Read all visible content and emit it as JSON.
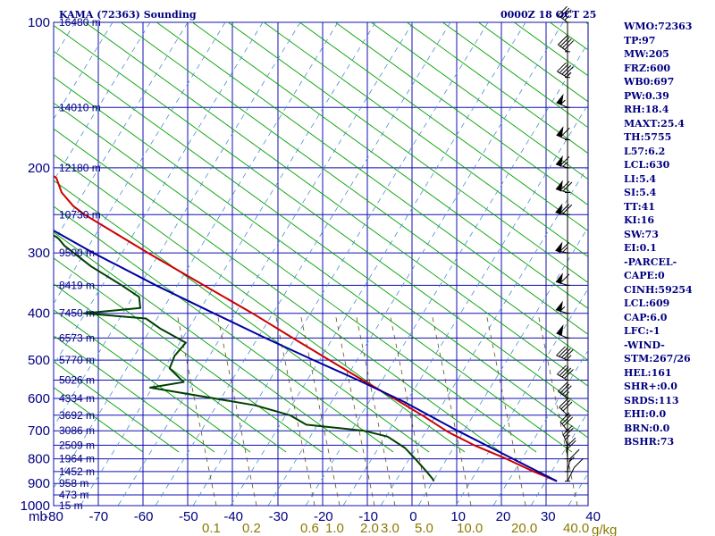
{
  "title_left": "KAMA (72363) Sounding",
  "title_right": "0000Z 18 OCT 25",
  "pressure_unit": "mb",
  "mixing_unit": "g/kg",
  "chart_data": {
    "type": "line",
    "title": "KAMA (72363) Sounding",
    "timestamp": "0000Z 18 OCT 25",
    "y_axis": "pressure (mb), logarithmic, top 100 to bottom 1000",
    "x_axis": "temperature (C), skewed isotherms",
    "pressure_ticks": [
      100,
      200,
      300,
      400,
      500,
      600,
      700,
      800,
      900,
      1000
    ],
    "temperature_ticks": [
      -80,
      -70,
      -60,
      -50,
      -40,
      -30,
      -20,
      -10,
      0,
      10,
      20,
      30,
      40
    ],
    "temperature_tick_labels": [
      "-80",
      "-70",
      "-60",
      "-50",
      "-40",
      "-30",
      "-20",
      "-10",
      "0",
      "10",
      "20",
      "30",
      "40"
    ],
    "height_labels": [
      {
        "p": 100,
        "text": "16480 m"
      },
      {
        "p": 150,
        "text": "14010 m"
      },
      {
        "p": 200,
        "text": "12180 m"
      },
      {
        "p": 250,
        "text": "10730 m"
      },
      {
        "p": 300,
        "text": "9500 m"
      },
      {
        "p": 350,
        "text": "8419 m"
      },
      {
        "p": 400,
        "text": "7450 m"
      },
      {
        "p": 450,
        "text": "6573 m"
      },
      {
        "p": 500,
        "text": "5770 m"
      },
      {
        "p": 550,
        "text": "5026 m"
      },
      {
        "p": 600,
        "text": "4334 m"
      },
      {
        "p": 650,
        "text": "3692 m"
      },
      {
        "p": 700,
        "text": "3086 m"
      },
      {
        "p": 750,
        "text": "2509 m"
      },
      {
        "p": 800,
        "text": "1964 m"
      },
      {
        "p": 850,
        "text": "1452 m"
      },
      {
        "p": 900,
        "text": "958 m"
      },
      {
        "p": 950,
        "text": "473 m"
      },
      {
        "p": 1000,
        "text": "15 m"
      }
    ],
    "mixing_ratio_labels": [
      "0.1",
      "0.2",
      "0.6",
      "1.0",
      "2.0",
      "3.0",
      "5.0",
      "10.0",
      "20.0",
      "40.0"
    ],
    "mixing_ratio_values": [
      0.1,
      0.2,
      0.6,
      1.0,
      2.0,
      3.0,
      5.0,
      10.0,
      20.0,
      40.0
    ],
    "series": [
      {
        "name": "Temperature",
        "color": "#cc0000",
        "points": [
          [
            890,
            24.5
          ],
          [
            850,
            20.5
          ],
          [
            800,
            16.0
          ],
          [
            750,
            10.5
          ],
          [
            712,
            7.0
          ],
          [
            700,
            6.0
          ],
          [
            650,
            2.5
          ],
          [
            600,
            -1.7
          ],
          [
            550,
            -6.5
          ],
          [
            500,
            -11.5
          ],
          [
            450,
            -17.0
          ],
          [
            400,
            -23.0
          ],
          [
            350,
            -30.5
          ],
          [
            300,
            -39.0
          ],
          [
            250,
            -48.5
          ],
          [
            240,
            -50.0
          ],
          [
            225,
            -51.0
          ],
          [
            210,
            -50.5
          ],
          [
            200,
            -52.5
          ],
          [
            180,
            -56.0
          ],
          [
            160,
            -60.0
          ],
          [
            150,
            -63.0
          ],
          [
            130,
            -64.5
          ],
          [
            120,
            -67.0
          ],
          [
            110,
            -70.0
          ],
          [
            100,
            -74.0
          ]
        ]
      },
      {
        "name": "Dewpoint",
        "color": "#004000",
        "points": [
          [
            890,
            -2.5
          ],
          [
            880,
            -2.5
          ],
          [
            850,
            -3.0
          ],
          [
            800,
            -4.0
          ],
          [
            760,
            -5.0
          ],
          [
            720,
            -7.5
          ],
          [
            700,
            -12.0
          ],
          [
            680,
            -24.0
          ],
          [
            650,
            -26.5
          ],
          [
            620,
            -33.0
          ],
          [
            570,
            -54.0
          ],
          [
            555,
            -46.0
          ],
          [
            520,
            -47.5
          ],
          [
            490,
            -45.0
          ],
          [
            460,
            -41.0
          ],
          [
            430,
            -45.0
          ],
          [
            410,
            -47.0
          ],
          [
            400,
            -60.0
          ],
          [
            390,
            -47.0
          ],
          [
            370,
            -46.0
          ],
          [
            350,
            -48.5
          ],
          [
            320,
            -53.0
          ],
          [
            290,
            -56.5
          ],
          [
            280,
            -57.0
          ],
          [
            250,
            -62.0
          ],
          [
            225,
            -67.0
          ],
          [
            200,
            -73.0
          ],
          [
            180,
            -80.0
          ]
        ]
      },
      {
        "name": "Parcel",
        "color": "#0000a0",
        "points": [
          [
            890,
            24.5
          ],
          [
            700,
            8.5
          ],
          [
            609,
            0.0
          ],
          [
            550,
            -7.5
          ],
          [
            500,
            -15.0
          ],
          [
            450,
            -23.0
          ],
          [
            400,
            -31.5
          ],
          [
            350,
            -41.0
          ],
          [
            300,
            -51.0
          ],
          [
            250,
            -61.5
          ],
          [
            200,
            -73.0
          ],
          [
            180,
            -79.0
          ]
        ]
      }
    ],
    "wind_barbs": [
      {
        "p": 890,
        "dir": 190,
        "spd": 10
      },
      {
        "p": 850,
        "dir": 200,
        "spd": 15
      },
      {
        "p": 800,
        "dir": 210,
        "spd": 20
      },
      {
        "p": 750,
        "dir": 220,
        "spd": 25
      },
      {
        "p": 700,
        "dir": 230,
        "spd": 30
      },
      {
        "p": 650,
        "dir": 235,
        "spd": 30
      },
      {
        "p": 600,
        "dir": 240,
        "spd": 35
      },
      {
        "p": 550,
        "dir": 245,
        "spd": 40
      },
      {
        "p": 500,
        "dir": 250,
        "spd": 45
      },
      {
        "p": 450,
        "dir": 250,
        "spd": 50
      },
      {
        "p": 400,
        "dir": 255,
        "spd": 55
      },
      {
        "p": 350,
        "dir": 255,
        "spd": 60
      },
      {
        "p": 300,
        "dir": 260,
        "spd": 65
      },
      {
        "p": 250,
        "dir": 260,
        "spd": 70
      },
      {
        "p": 225,
        "dir": 255,
        "spd": 70
      },
      {
        "p": 200,
        "dir": 255,
        "spd": 65
      },
      {
        "p": 175,
        "dir": 250,
        "spd": 60
      },
      {
        "p": 150,
        "dir": 250,
        "spd": 55
      },
      {
        "p": 130,
        "dir": 245,
        "spd": 45
      },
      {
        "p": 115,
        "dir": 240,
        "spd": 40
      },
      {
        "p": 100,
        "dir": 240,
        "spd": 35
      }
    ]
  },
  "indices": [
    "WMO:72363",
    "TP:97",
    "MW:205",
    "FRZ:600",
    "WB0:697",
    "PW:0.39",
    "RH:18.4",
    "MAXT:25.4",
    "TH:5755",
    "L57:6.2",
    "LCL:630",
    "LI:5.4",
    "SI:5.4",
    "TT:41",
    "KI:16",
    "SW:73",
    "EI:0.1",
    "-PARCEL-",
    "CAPE:0",
    "CINH:59254",
    "LCL:609",
    "CAP:6.0",
    "LFC:-1",
    "-WIND-",
    "STM:267/26",
    "HEL:161",
    "SHR+:0.0",
    "SRDS:113",
    "EHI:0.0",
    "BRN:0.0",
    "BSHR:73"
  ]
}
